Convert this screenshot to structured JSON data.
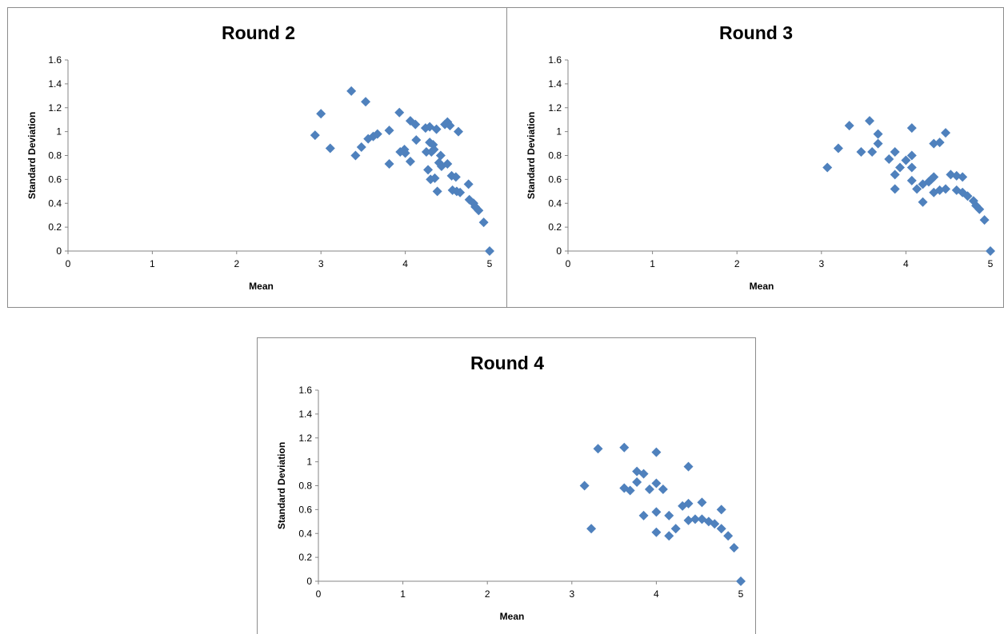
{
  "chart_data": [
    {
      "type": "scatter",
      "title": "Round 2",
      "xlabel": "Mean",
      "ylabel": "Standard Deviation",
      "xlim": [
        0,
        5
      ],
      "ylim": [
        0,
        1.6
      ],
      "x_ticks": [
        "0",
        "1",
        "2",
        "3",
        "4",
        "5"
      ],
      "y_ticks": [
        "0",
        "0.2",
        "0.4",
        "0.6",
        "0.8",
        "1",
        "1.2",
        "1.4",
        "1.6"
      ],
      "grid": false,
      "legend": "none",
      "marker_color": "#4f81bd",
      "points": [
        {
          "x": 2.93,
          "y": 0.97
        },
        {
          "x": 3.0,
          "y": 1.15
        },
        {
          "x": 3.11,
          "y": 0.86
        },
        {
          "x": 3.36,
          "y": 1.34
        },
        {
          "x": 3.41,
          "y": 0.8
        },
        {
          "x": 3.48,
          "y": 0.87
        },
        {
          "x": 3.53,
          "y": 1.25
        },
        {
          "x": 3.56,
          "y": 0.94
        },
        {
          "x": 3.62,
          "y": 0.96
        },
        {
          "x": 3.67,
          "y": 0.98
        },
        {
          "x": 3.81,
          "y": 1.01
        },
        {
          "x": 3.81,
          "y": 0.73
        },
        {
          "x": 3.93,
          "y": 1.16
        },
        {
          "x": 3.94,
          "y": 0.83
        },
        {
          "x": 3.99,
          "y": 0.85
        },
        {
          "x": 4.0,
          "y": 0.82
        },
        {
          "x": 4.06,
          "y": 1.09
        },
        {
          "x": 4.06,
          "y": 0.75
        },
        {
          "x": 4.12,
          "y": 1.06
        },
        {
          "x": 4.13,
          "y": 0.93
        },
        {
          "x": 4.24,
          "y": 1.03
        },
        {
          "x": 4.25,
          "y": 0.83
        },
        {
          "x": 4.27,
          "y": 0.68
        },
        {
          "x": 4.29,
          "y": 1.04
        },
        {
          "x": 4.29,
          "y": 0.91
        },
        {
          "x": 4.3,
          "y": 0.6
        },
        {
          "x": 4.31,
          "y": 0.83
        },
        {
          "x": 4.33,
          "y": 0.89
        },
        {
          "x": 4.34,
          "y": 0.85
        },
        {
          "x": 4.35,
          "y": 0.61
        },
        {
          "x": 4.37,
          "y": 1.02
        },
        {
          "x": 4.38,
          "y": 0.5
        },
        {
          "x": 4.4,
          "y": 0.74
        },
        {
          "x": 4.42,
          "y": 0.8
        },
        {
          "x": 4.43,
          "y": 0.71
        },
        {
          "x": 4.47,
          "y": 1.06
        },
        {
          "x": 4.5,
          "y": 1.08
        },
        {
          "x": 4.5,
          "y": 0.73
        },
        {
          "x": 4.53,
          "y": 1.05
        },
        {
          "x": 4.55,
          "y": 0.63
        },
        {
          "x": 4.56,
          "y": 0.51
        },
        {
          "x": 4.6,
          "y": 0.62
        },
        {
          "x": 4.61,
          "y": 0.5
        },
        {
          "x": 4.63,
          "y": 1.0
        },
        {
          "x": 4.65,
          "y": 0.49
        },
        {
          "x": 4.75,
          "y": 0.56
        },
        {
          "x": 4.76,
          "y": 0.43
        },
        {
          "x": 4.81,
          "y": 0.4
        },
        {
          "x": 4.83,
          "y": 0.37
        },
        {
          "x": 4.87,
          "y": 0.34
        },
        {
          "x": 4.93,
          "y": 0.24
        },
        {
          "x": 5.0,
          "y": 0.0
        }
      ]
    },
    {
      "type": "scatter",
      "title": "Round 3",
      "xlabel": "Mean",
      "ylabel": "Standard Deviation",
      "xlim": [
        0,
        5
      ],
      "ylim": [
        0,
        1.6
      ],
      "x_ticks": [
        "0",
        "1",
        "2",
        "3",
        "4",
        "5"
      ],
      "y_ticks": [
        "0",
        "0.2",
        "0.4",
        "0.6",
        "0.8",
        "1",
        "1.2",
        "1.4",
        "1.6"
      ],
      "grid": false,
      "legend": "none",
      "marker_color": "#4f81bd",
      "points": [
        {
          "x": 3.07,
          "y": 0.7
        },
        {
          "x": 3.2,
          "y": 0.86
        },
        {
          "x": 3.33,
          "y": 1.05
        },
        {
          "x": 3.47,
          "y": 0.83
        },
        {
          "x": 3.57,
          "y": 1.09
        },
        {
          "x": 3.6,
          "y": 0.83
        },
        {
          "x": 3.67,
          "y": 0.98
        },
        {
          "x": 3.67,
          "y": 0.9
        },
        {
          "x": 3.8,
          "y": 0.77
        },
        {
          "x": 3.87,
          "y": 0.83
        },
        {
          "x": 3.87,
          "y": 0.64
        },
        {
          "x": 3.87,
          "y": 0.52
        },
        {
          "x": 3.93,
          "y": 0.7
        },
        {
          "x": 4.0,
          "y": 0.76
        },
        {
          "x": 4.07,
          "y": 1.03
        },
        {
          "x": 4.07,
          "y": 0.8
        },
        {
          "x": 4.07,
          "y": 0.7
        },
        {
          "x": 4.07,
          "y": 0.59
        },
        {
          "x": 4.13,
          "y": 0.52
        },
        {
          "x": 4.2,
          "y": 0.41
        },
        {
          "x": 4.2,
          "y": 0.56
        },
        {
          "x": 4.27,
          "y": 0.58
        },
        {
          "x": 4.3,
          "y": 0.6
        },
        {
          "x": 4.33,
          "y": 0.9
        },
        {
          "x": 4.33,
          "y": 0.62
        },
        {
          "x": 4.33,
          "y": 0.49
        },
        {
          "x": 4.4,
          "y": 0.91
        },
        {
          "x": 4.4,
          "y": 0.51
        },
        {
          "x": 4.47,
          "y": 0.99
        },
        {
          "x": 4.47,
          "y": 0.52
        },
        {
          "x": 4.53,
          "y": 0.64
        },
        {
          "x": 4.6,
          "y": 0.63
        },
        {
          "x": 4.6,
          "y": 0.51
        },
        {
          "x": 4.67,
          "y": 0.62
        },
        {
          "x": 4.67,
          "y": 0.49
        },
        {
          "x": 4.73,
          "y": 0.46
        },
        {
          "x": 4.8,
          "y": 0.42
        },
        {
          "x": 4.83,
          "y": 0.38
        },
        {
          "x": 4.87,
          "y": 0.35
        },
        {
          "x": 4.93,
          "y": 0.26
        },
        {
          "x": 5.0,
          "y": 0.0
        }
      ]
    },
    {
      "type": "scatter",
      "title": "Round 4",
      "xlabel": "Mean",
      "ylabel": "Standard Deviation",
      "xlim": [
        0,
        5
      ],
      "ylim": [
        0,
        1.6
      ],
      "x_ticks": [
        "0",
        "1",
        "2",
        "3",
        "4",
        "5"
      ],
      "y_ticks": [
        "0",
        "0.2",
        "0.4",
        "0.6",
        "0.8",
        "1",
        "1.2",
        "1.4",
        "1.6"
      ],
      "grid": false,
      "legend": "none",
      "marker_color": "#4f81bd",
      "points": [
        {
          "x": 3.15,
          "y": 0.8
        },
        {
          "x": 3.23,
          "y": 0.44
        },
        {
          "x": 3.31,
          "y": 1.11
        },
        {
          "x": 3.62,
          "y": 1.12
        },
        {
          "x": 3.62,
          "y": 0.78
        },
        {
          "x": 3.69,
          "y": 0.76
        },
        {
          "x": 3.77,
          "y": 0.92
        },
        {
          "x": 3.77,
          "y": 0.83
        },
        {
          "x": 3.85,
          "y": 0.9
        },
        {
          "x": 3.85,
          "y": 0.55
        },
        {
          "x": 3.92,
          "y": 0.77
        },
        {
          "x": 4.0,
          "y": 1.08
        },
        {
          "x": 4.0,
          "y": 0.82
        },
        {
          "x": 4.0,
          "y": 0.58
        },
        {
          "x": 4.0,
          "y": 0.41
        },
        {
          "x": 4.08,
          "y": 0.77
        },
        {
          "x": 4.15,
          "y": 0.55
        },
        {
          "x": 4.15,
          "y": 0.38
        },
        {
          "x": 4.23,
          "y": 0.44
        },
        {
          "x": 4.31,
          "y": 0.63
        },
        {
          "x": 4.38,
          "y": 0.96
        },
        {
          "x": 4.38,
          "y": 0.65
        },
        {
          "x": 4.38,
          "y": 0.51
        },
        {
          "x": 4.46,
          "y": 0.52
        },
        {
          "x": 4.54,
          "y": 0.66
        },
        {
          "x": 4.54,
          "y": 0.52
        },
        {
          "x": 4.62,
          "y": 0.5
        },
        {
          "x": 4.69,
          "y": 0.48
        },
        {
          "x": 4.77,
          "y": 0.6
        },
        {
          "x": 4.77,
          "y": 0.44
        },
        {
          "x": 4.85,
          "y": 0.38
        },
        {
          "x": 4.92,
          "y": 0.28
        },
        {
          "x": 5.0,
          "y": 0.0
        }
      ]
    }
  ]
}
